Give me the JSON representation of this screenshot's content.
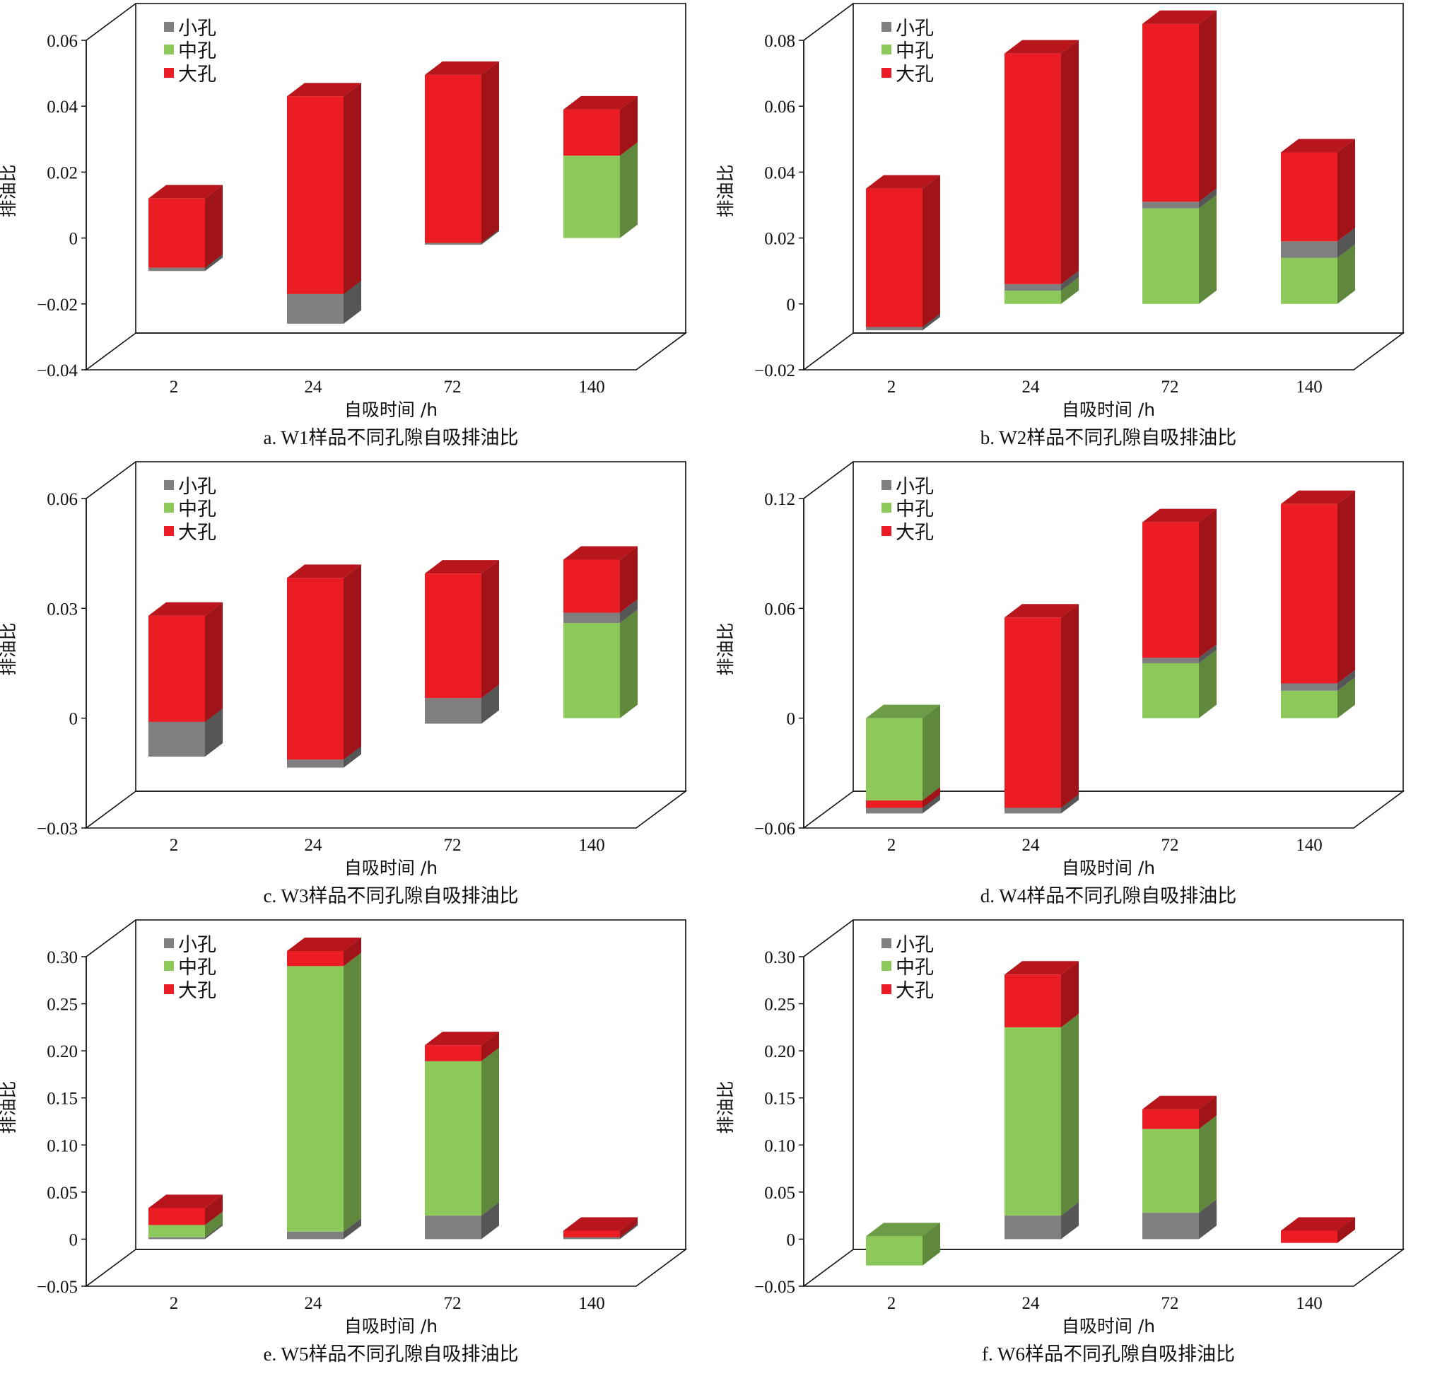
{
  "colors": {
    "small_pore": "#7f7f80",
    "medium_pore": "#8cc85a",
    "large_pore": "#ec1c24",
    "axis": "#111111"
  },
  "chart_data": [
    {
      "type": "bar",
      "subtype": "stacked-3d",
      "title": "a. W1样品不同孔隙自吸排油比",
      "xlabel": "自吸时间 /h",
      "ylabel": "排油比",
      "categories": [
        "2",
        "24",
        "72",
        "140"
      ],
      "ylim": [
        -0.04,
        0.06
      ],
      "yticks": [
        -0.04,
        -0.02,
        0,
        0.02,
        0.04,
        0.06
      ],
      "ytick_labels": [
        "−0.04",
        "−0.02",
        "0",
        "0.02",
        "0.04",
        "0.06"
      ],
      "legend": [
        "小孔",
        "中孔",
        "大孔"
      ],
      "legend_position": "top-left",
      "stack_order": [
        "medium",
        "small",
        "large"
      ],
      "series": [
        {
          "name": "小孔",
          "key": "small",
          "values": [
            0.001,
            0.009,
            0.0005,
            0
          ]
        },
        {
          "name": "中孔",
          "key": "medium",
          "values": [
            -0.01,
            -0.026,
            -0.002,
            0.025
          ]
        },
        {
          "name": "大孔",
          "key": "large",
          "values": [
            0.021,
            0.06,
            0.051,
            0.014
          ]
        }
      ]
    },
    {
      "type": "bar",
      "subtype": "stacked-3d",
      "title": "b. W2样品不同孔隙自吸排油比",
      "xlabel": "自吸时间 /h",
      "ylabel": "排油比",
      "categories": [
        "2",
        "24",
        "72",
        "140"
      ],
      "ylim": [
        -0.02,
        0.08
      ],
      "yticks": [
        -0.02,
        0,
        0.02,
        0.04,
        0.06,
        0.08
      ],
      "ytick_labels": [
        "−0.02",
        "0",
        "0.02",
        "0.04",
        "0.06",
        "0.08"
      ],
      "legend": [
        "小孔",
        "中孔",
        "大孔"
      ],
      "legend_position": "top-left",
      "stack_order": [
        "medium",
        "small",
        "large"
      ],
      "series": [
        {
          "name": "小孔",
          "key": "small",
          "values": [
            0.001,
            0.002,
            0.002,
            0.005
          ]
        },
        {
          "name": "中孔",
          "key": "medium",
          "values": [
            -0.008,
            0.004,
            0.029,
            0.014
          ]
        },
        {
          "name": "大孔",
          "key": "large",
          "values": [
            0.042,
            0.07,
            0.054,
            0.027
          ]
        }
      ]
    },
    {
      "type": "bar",
      "subtype": "stacked-3d",
      "title": "c. W3样品不同孔隙自吸排油比",
      "xlabel": "自吸时间 /h",
      "ylabel": "排油比",
      "categories": [
        "2",
        "24",
        "72",
        "140"
      ],
      "ylim": [
        -0.03,
        0.06
      ],
      "yticks": [
        -0.03,
        0,
        0.03,
        0.06
      ],
      "ytick_labels": [
        "−0.03",
        "0",
        "0.03",
        "0.06"
      ],
      "legend": [
        "小孔",
        "中孔",
        "大孔"
      ],
      "legend_position": "top-left",
      "stack_order": [
        "medium",
        "small",
        "large"
      ],
      "series": [
        {
          "name": "小孔",
          "key": "small",
          "values": [
            0.0095,
            0.0022,
            0.007,
            0.0028
          ]
        },
        {
          "name": "中孔",
          "key": "medium",
          "values": [
            -0.0105,
            -0.0135,
            -0.0015,
            0.026
          ]
        },
        {
          "name": "大孔",
          "key": "large",
          "values": [
            0.029,
            0.0496,
            0.034,
            0.0145
          ]
        }
      ]
    },
    {
      "type": "bar",
      "subtype": "stacked-3d",
      "title": "d. W4样品不同孔隙自吸排油比",
      "xlabel": "自吸时间 /h",
      "ylabel": "排油比",
      "categories": [
        "2",
        "24",
        "72",
        "140"
      ],
      "ylim": [
        -0.06,
        0.12
      ],
      "yticks": [
        -0.06,
        0,
        0.06,
        0.12
      ],
      "ytick_labels": [
        "−0.06",
        "0",
        "0.06",
        "0.12"
      ],
      "legend": [
        "小孔",
        "中孔",
        "大孔"
      ],
      "legend_position": "top-left",
      "stack_order": [
        "medium",
        "small",
        "large"
      ],
      "series": [
        {
          "name": "小孔",
          "key": "small",
          "values": [
            0.003,
            0.003,
            0.003,
            0.004
          ]
        },
        {
          "name": "中孔",
          "key": "medium",
          "values": [
            -0.052,
            -0.052,
            0.03,
            0.015
          ]
        },
        {
          "name": "大孔",
          "key": "large",
          "values": [
            0.004,
            0.104,
            0.074,
            0.098
          ]
        }
      ]
    },
    {
      "type": "bar",
      "subtype": "stacked-3d",
      "title": "e. W5样品不同孔隙自吸排油比",
      "xlabel": "自吸时间 /h",
      "ylabel": "排油比",
      "categories": [
        "2",
        "24",
        "72",
        "140"
      ],
      "ylim": [
        -0.05,
        0.3
      ],
      "yticks": [
        -0.05,
        0,
        0.05,
        0.1,
        0.15,
        0.2,
        0.25,
        0.3
      ],
      "ytick_labels": [
        "−0.05",
        "0",
        "0.05",
        "0.10",
        "0.15",
        "0.20",
        "0.25",
        "0.30"
      ],
      "legend": [
        "小孔",
        "中孔",
        "大孔"
      ],
      "legend_position": "top-left",
      "stack_order": [
        "small",
        "medium",
        "large"
      ],
      "series": [
        {
          "name": "小孔",
          "key": "small",
          "values": [
            0.002,
            0.008,
            0.025,
            0.003
          ]
        },
        {
          "name": "中孔",
          "key": "medium",
          "values": [
            0.013,
            0.282,
            0.164,
            0.006
          ]
        },
        {
          "name": "大孔",
          "key": "large",
          "values": [
            0.018,
            0.016,
            0.017,
            -0.007
          ]
        }
      ]
    },
    {
      "type": "bar",
      "subtype": "stacked-3d",
      "title": "f. W6样品不同孔隙自吸排油比",
      "xlabel": "自吸时间 /h",
      "ylabel": "排油比",
      "categories": [
        "2",
        "24",
        "72",
        "140"
      ],
      "ylim": [
        -0.05,
        0.3
      ],
      "yticks": [
        -0.05,
        0,
        0.05,
        0.1,
        0.15,
        0.2,
        0.25,
        0.3
      ],
      "ytick_labels": [
        "−0.05",
        "0",
        "0.05",
        "0.10",
        "0.15",
        "0.20",
        "0.25",
        "0.30"
      ],
      "legend": [
        "小孔",
        "中孔",
        "大孔"
      ],
      "legend_position": "top-left",
      "stack_order": [
        "small",
        "medium",
        "large"
      ],
      "series": [
        {
          "name": "小孔",
          "key": "small",
          "values": [
            0.003,
            0.025,
            0.028,
            0.003
          ]
        },
        {
          "name": "中孔",
          "key": "medium",
          "values": [
            -0.031,
            0.2,
            0.089,
            0.006
          ]
        },
        {
          "name": "大孔",
          "key": "large",
          "values": [
            0.0,
            0.056,
            0.021,
            -0.013
          ]
        }
      ]
    }
  ]
}
